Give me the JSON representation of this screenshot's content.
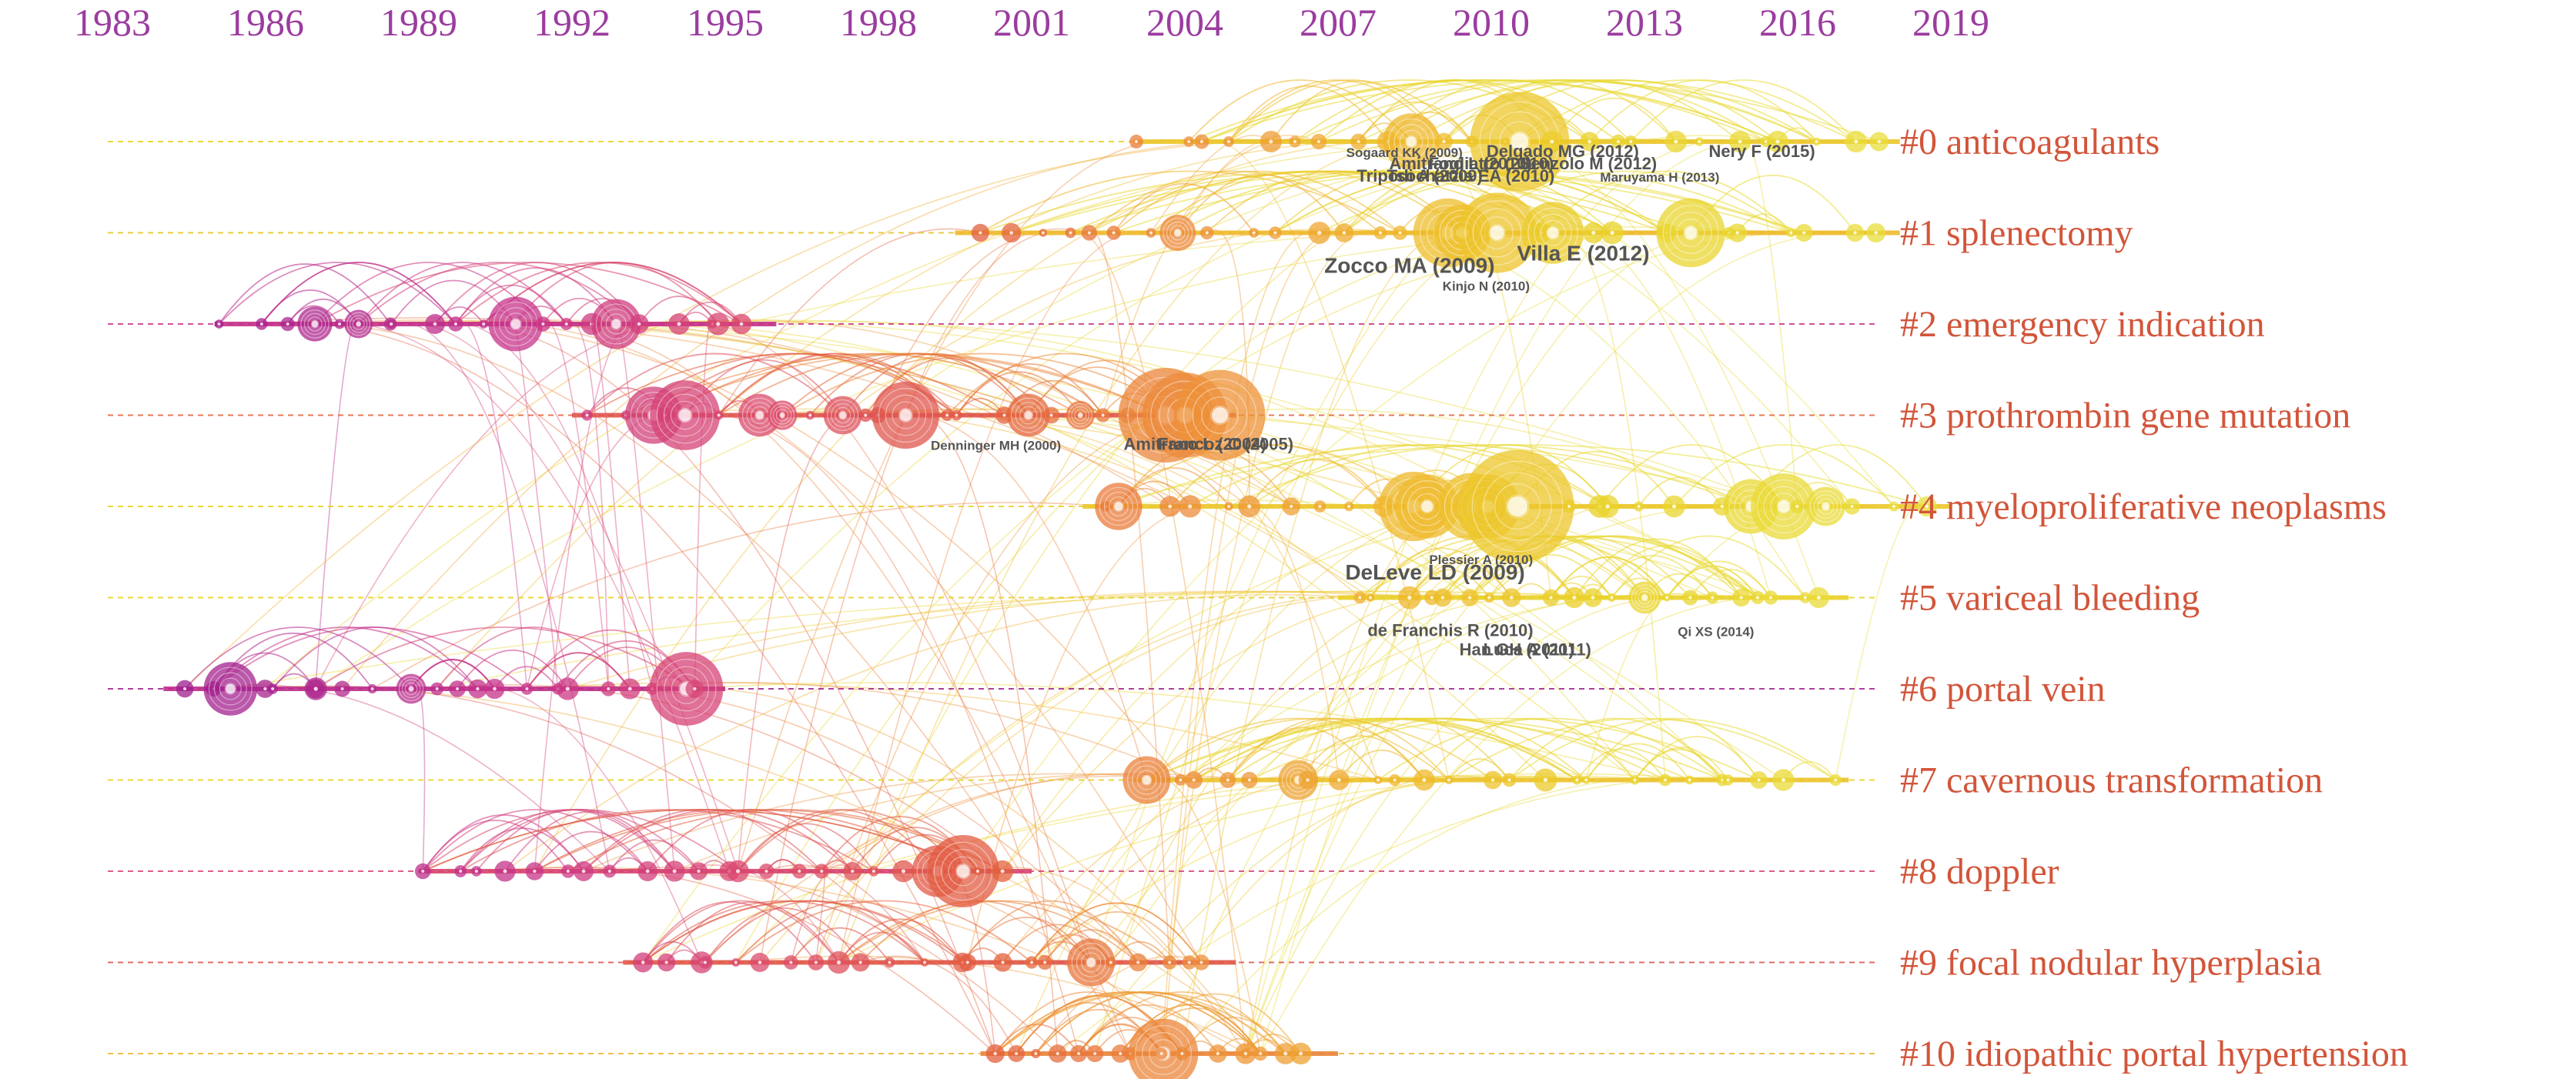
{
  "years": [
    "1983",
    "1986",
    "1989",
    "1992",
    "1995",
    "1998",
    "2001",
    "2004",
    "2007",
    "2010",
    "2013",
    "2016",
    "2019"
  ],
  "clusters": [
    {
      "id": 0,
      "label": "#0 anticoagulants",
      "color": "#e6d21c",
      "span": [
        2003,
        2018
      ]
    },
    {
      "id": 1,
      "label": "#1 splenectomy",
      "color": "#e6c41c",
      "span": [
        1999.5,
        2018
      ]
    },
    {
      "id": 2,
      "label": "#2 emergency indication",
      "color": "#c9328a",
      "span": [
        1985,
        1996
      ]
    },
    {
      "id": 3,
      "label": "#3 prothrombin gene mutation",
      "color": "#e5603a",
      "span": [
        1992,
        2005
      ]
    },
    {
      "id": 4,
      "label": "#4 myeloproliferative neoplasms",
      "color": "#e6d21c",
      "span": [
        2002,
        2019
      ]
    },
    {
      "id": 5,
      "label": "#5 variceal bleeding",
      "color": "#e6d21c",
      "span": [
        2007,
        2017
      ]
    },
    {
      "id": 6,
      "label": "#6 portal vein",
      "color": "#a01e8c",
      "span": [
        1984,
        1995
      ]
    },
    {
      "id": 7,
      "label": "#7 cavernous transformation",
      "color": "#e6d21c",
      "span": [
        2003,
        2017
      ]
    },
    {
      "id": 8,
      "label": "#8 doppler",
      "color": "#d8407a",
      "span": [
        1989,
        2001
      ]
    },
    {
      "id": 9,
      "label": "#9 focal nodular hyperplasia",
      "color": "#dd5050",
      "span": [
        1993,
        2005
      ]
    },
    {
      "id": 10,
      "label": "#10 idiopathic portal hypertension",
      "color": "#ecb42a",
      "span": [
        2000,
        2007
      ]
    }
  ],
  "node_labels": [
    {
      "text": "Denninger MH (2000)",
      "cluster": 3,
      "year": 2000.3,
      "size": "small"
    },
    {
      "text": "Amitrano L (2004)",
      "cluster": 3,
      "year": 2004.2,
      "size": "medium"
    },
    {
      "text": "Francoz C (2005)",
      "cluster": 3,
      "year": 2004.8,
      "size": "medium"
    },
    {
      "text": "DeLeve LD (2009)",
      "cluster": 4,
      "year": 2008.9,
      "size": "large"
    },
    {
      "text": "Plessier A (2010)",
      "cluster": 4,
      "year": 2009.8,
      "size": "small"
    },
    {
      "text": "Han GH (2011)",
      "cluster": 5,
      "year": 2010.5,
      "size": "medium"
    },
    {
      "text": "de Franchis R (2010)",
      "cluster": 5,
      "year": 2009.2,
      "size": "medium"
    },
    {
      "text": "Luca A (2011)",
      "cluster": 5,
      "year": 2010.9,
      "size": "medium"
    },
    {
      "text": "Qi XS (2014)",
      "cluster": 5,
      "year": 2014.4,
      "size": "small"
    },
    {
      "text": "Kinjo N (2010)",
      "cluster": 1,
      "year": 2009.9,
      "size": "small"
    },
    {
      "text": "Villa E (2012)",
      "cluster": 1,
      "year": 2011.8,
      "size": "large"
    },
    {
      "text": "Zocco MA (2009)",
      "cluster": 1,
      "year": 2008.4,
      "size": "large"
    },
    {
      "text": "Nery F (2015)",
      "cluster": 0,
      "year": 2015.3,
      "size": "medium"
    },
    {
      "text": "Senzolo M (2012)",
      "cluster": 0,
      "year": 2011.9,
      "size": "medium"
    },
    {
      "text": "Tsochatzis EA (2010)",
      "cluster": 0,
      "year": 2009.6,
      "size": "medium"
    },
    {
      "text": "Delgado MG (2012)",
      "cluster": 0,
      "year": 2011.4,
      "size": "medium"
    },
    {
      "text": "Amitrano L (2010)",
      "cluster": 0,
      "year": 2009.4,
      "size": "medium"
    },
    {
      "text": "Tripodi A (2009)",
      "cluster": 0,
      "year": 2008.6,
      "size": "medium"
    },
    {
      "text": "Sogaard KK (2009)",
      "cluster": 0,
      "year": 2008.3,
      "size": "small"
    },
    {
      "text": "Fogliatto (2010)",
      "cluster": 0,
      "year": 2010.0,
      "size": "medium"
    },
    {
      "text": "Maruyama H (2013)",
      "cluster": 0,
      "year": 2013.3,
      "size": "small"
    }
  ]
}
